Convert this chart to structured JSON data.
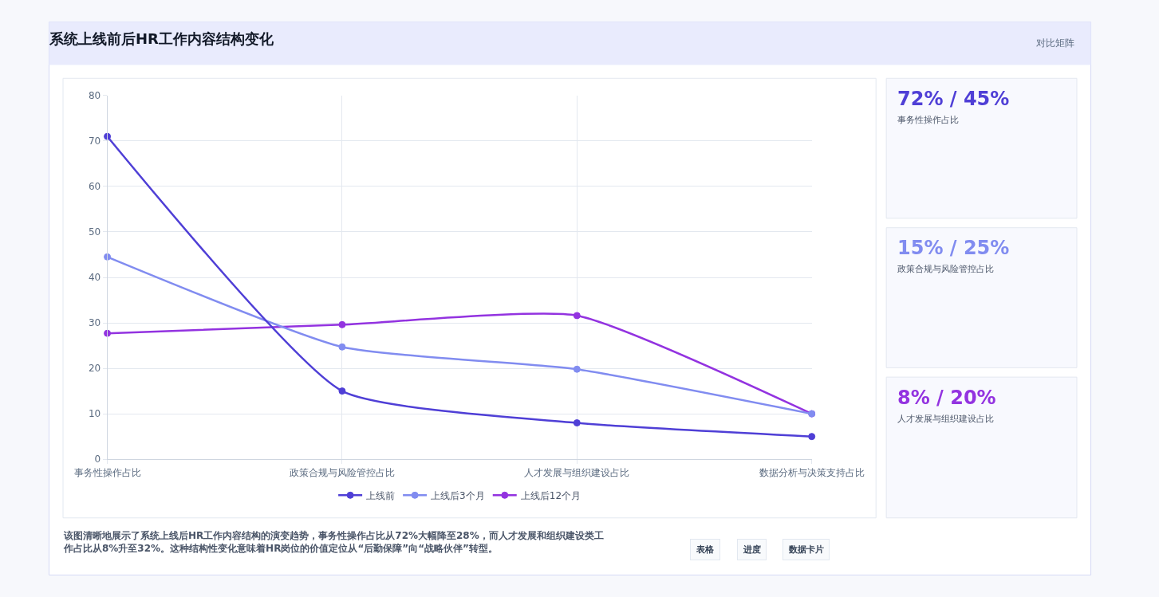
{
  "chart_data": {
    "type": "line",
    "title": "系统上线前后HR工作内容结构变化",
    "categories": [
      "事务性操作占比",
      "政策合规与风险管控占比",
      "人才发展与组织建设占比",
      "数据分析与决策支持占比"
    ],
    "series": [
      {
        "name": "上线前",
        "color": "#4f3fd6",
        "values": [
          71,
          15,
          8,
          5
        ]
      },
      {
        "name": "上线后3个月",
        "color": "#818cf0",
        "values": [
          44.5,
          24.7,
          19.8,
          10
        ]
      },
      {
        "name": "上线后12个月",
        "color": "#9333e0",
        "values": [
          27.7,
          29.6,
          31.6,
          10
        ]
      }
    ],
    "ylim": [
      0,
      80
    ],
    "yticks": [
      0,
      10,
      20,
      30,
      40,
      50,
      60,
      70,
      80
    ],
    "grid": true,
    "legend": "bottom",
    "marker": "circle",
    "line_style": "solid",
    "annotations": [
      "对比矩阵",
      "72% / 45%",
      "事务性操作占比",
      "15% / 25%",
      "政策合规与风险管控占比",
      "8% / 20%",
      "人才发展与组织建设占比",
      "该图清晰地展示了系统上线后HR工作内容结构的演变趋势，事务性操作占比从72%大幅降至28%，而人才发展和组织建设类工作占比从8%升至32%。这种结构性变化意味着HR岗位的价值定位从“后勤保障”向“战略伙伴”转型。",
      "表格",
      "进度",
      "数据卡片"
    ]
  }
}
